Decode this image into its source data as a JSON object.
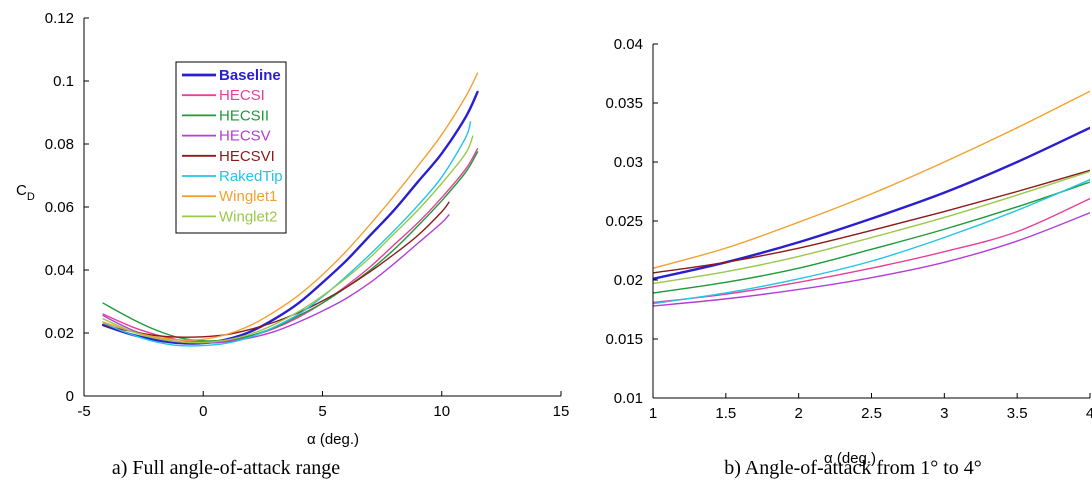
{
  "chart_data": [
    {
      "type": "line",
      "caption": "a) Full angle-of-attack range",
      "xlabel": "α (deg.)",
      "ylabel": "C",
      "ylabel_sub": "D",
      "xlim": [
        -5,
        15
      ],
      "ylim": [
        0,
        0.12
      ],
      "xticks": [
        -5,
        0,
        5,
        10,
        15
      ],
      "xtick_labels": [
        "-5",
        "0",
        "5",
        "10",
        "15"
      ],
      "yticks": [
        0,
        0.02,
        0.04,
        0.06,
        0.08,
        0.1,
        0.12
      ],
      "ytick_labels": [
        "0",
        "0.02",
        "0.04",
        "0.06",
        "0.08",
        "0.1",
        "0.12"
      ],
      "grid": false,
      "legend": "upper-left inside",
      "series": [
        {
          "name": "Baseline",
          "color": "#2a1fd0",
          "width": 2.4,
          "x": [
            -4.2,
            -3,
            -2,
            -1,
            0,
            1,
            2,
            3,
            4,
            5,
            6,
            7,
            8,
            9,
            10,
            11,
            11.5
          ],
          "y": [
            0.0225,
            0.0195,
            0.0178,
            0.0168,
            0.0168,
            0.018,
            0.0205,
            0.0245,
            0.0295,
            0.036,
            0.043,
            0.051,
            0.059,
            0.068,
            0.077,
            0.0885,
            0.0965
          ]
        },
        {
          "name": "HECSI",
          "color": "#e8409a",
          "width": 1.4,
          "x": [
            -4.2,
            -3,
            -2,
            -1,
            0,
            1,
            2,
            3,
            4,
            5,
            6,
            7,
            8,
            9,
            10,
            11,
            11.5
          ],
          "y": [
            0.026,
            0.022,
            0.0195,
            0.0178,
            0.0172,
            0.0175,
            0.019,
            0.0215,
            0.025,
            0.0295,
            0.035,
            0.041,
            0.048,
            0.055,
            0.063,
            0.072,
            0.0785
          ]
        },
        {
          "name": "HECSII",
          "color": "#1f9a3a",
          "width": 1.4,
          "x": [
            -4.2,
            -3,
            -2,
            -1,
            0,
            1,
            2,
            3,
            4,
            5,
            6,
            7,
            8,
            9,
            10,
            11,
            11.5
          ],
          "y": [
            0.0295,
            0.0245,
            0.021,
            0.0185,
            0.0175,
            0.0178,
            0.0192,
            0.0218,
            0.0255,
            0.0295,
            0.0345,
            0.04,
            0.0465,
            0.054,
            0.062,
            0.071,
            0.0775
          ]
        },
        {
          "name": "HECSV",
          "color": "#b23fd8",
          "width": 1.4,
          "x": [
            -4.2,
            -3,
            -2,
            -1,
            0,
            1,
            2,
            3,
            4,
            5,
            6,
            7,
            8,
            9,
            10,
            10.3
          ],
          "y": [
            0.0255,
            0.021,
            0.0185,
            0.0172,
            0.0168,
            0.0172,
            0.0185,
            0.0205,
            0.0235,
            0.027,
            0.031,
            0.036,
            0.042,
            0.0485,
            0.055,
            0.0575
          ]
        },
        {
          "name": "HECSVI",
          "color": "#8c1a1a",
          "width": 1.4,
          "x": [
            -4.2,
            -3,
            -2,
            -1,
            0,
            1,
            2,
            3,
            4,
            5,
            6,
            7,
            8,
            9,
            10,
            10.3
          ],
          "y": [
            0.0225,
            0.0205,
            0.0192,
            0.0187,
            0.0188,
            0.0195,
            0.0212,
            0.0235,
            0.0265,
            0.0302,
            0.0345,
            0.0395,
            0.045,
            0.051,
            0.0585,
            0.0615
          ]
        },
        {
          "name": "RakedTip",
          "color": "#22c4e8",
          "width": 1.4,
          "x": [
            -4.2,
            -3,
            -2,
            -1,
            0,
            1,
            2,
            3,
            4,
            5,
            6,
            7,
            8,
            9,
            10,
            11,
            11.2
          ],
          "y": [
            0.0232,
            0.0195,
            0.0172,
            0.016,
            0.016,
            0.0168,
            0.0188,
            0.022,
            0.026,
            0.0315,
            0.038,
            0.045,
            0.0525,
            0.0605,
            0.0695,
            0.082,
            0.087
          ]
        },
        {
          "name": "Winglet1",
          "color": "#f5a030",
          "width": 1.4,
          "x": [
            -4.2,
            -3,
            -2,
            -1,
            0,
            1,
            2,
            3,
            4,
            5,
            6,
            7,
            8,
            9,
            10,
            11,
            11.5
          ],
          "y": [
            0.0235,
            0.0205,
            0.0187,
            0.0178,
            0.018,
            0.0196,
            0.0225,
            0.0268,
            0.032,
            0.0385,
            0.046,
            0.0545,
            0.0635,
            0.073,
            0.083,
            0.095,
            0.1025
          ]
        },
        {
          "name": "Winglet2",
          "color": "#9ac84a",
          "width": 1.4,
          "x": [
            -4.2,
            -3,
            -2,
            -1,
            0,
            1,
            2,
            3,
            4,
            5,
            6,
            7,
            8,
            9,
            10,
            11,
            11.3
          ],
          "y": [
            0.0245,
            0.0205,
            0.0183,
            0.0172,
            0.017,
            0.0178,
            0.0197,
            0.0228,
            0.0268,
            0.0318,
            0.0375,
            0.044,
            0.0515,
            0.059,
            0.0675,
            0.077,
            0.0825
          ]
        }
      ]
    },
    {
      "type": "line",
      "caption": "b) Angle-of-attack from 1° to 4°",
      "xlabel": "α (deg.)",
      "xlim": [
        1,
        4
      ],
      "ylim": [
        0.01,
        0.04
      ],
      "xticks": [
        1,
        1.5,
        2,
        2.5,
        3,
        3.5,
        4
      ],
      "xtick_labels": [
        "1",
        "1.5",
        "2",
        "2.5",
        "3",
        "3.5",
        "4"
      ],
      "yticks": [
        0.01,
        0.015,
        0.02,
        0.025,
        0.03,
        0.035,
        0.04
      ],
      "ytick_labels": [
        "0.01",
        "0.015",
        "0.02",
        "0.025",
        "0.03",
        "0.035",
        "0.04"
      ],
      "grid": false,
      "series": [
        {
          "name": "Baseline",
          "color": "#2a1fd0",
          "width": 2.4,
          "x": [
            1,
            1.5,
            2,
            2.5,
            3,
            3.5,
            4
          ],
          "y": [
            0.0201,
            0.0215,
            0.0232,
            0.0252,
            0.0274,
            0.03,
            0.0329
          ]
        },
        {
          "name": "HECSI",
          "color": "#e8409a",
          "width": 1.4,
          "x": [
            1,
            1.5,
            2,
            2.5,
            3,
            3.5,
            4
          ],
          "y": [
            0.0181,
            0.0188,
            0.0198,
            0.021,
            0.0224,
            0.0241,
            0.0269
          ]
        },
        {
          "name": "HECSII",
          "color": "#1f9a3a",
          "width": 1.4,
          "x": [
            1,
            1.5,
            2,
            2.5,
            3,
            3.5,
            4
          ],
          "y": [
            0.0189,
            0.0198,
            0.021,
            0.0226,
            0.0243,
            0.0262,
            0.0283
          ]
        },
        {
          "name": "HECSV",
          "color": "#b23fd8",
          "width": 1.4,
          "x": [
            1,
            1.5,
            2,
            2.5,
            3,
            3.5,
            4
          ],
          "y": [
            0.0178,
            0.0184,
            0.0192,
            0.0202,
            0.0215,
            0.0233,
            0.0257
          ]
        },
        {
          "name": "HECSVI",
          "color": "#8c1a1a",
          "width": 1.4,
          "x": [
            1,
            1.5,
            2,
            2.5,
            3,
            3.5,
            4
          ],
          "y": [
            0.0206,
            0.0215,
            0.0227,
            0.0242,
            0.0258,
            0.0275,
            0.0293
          ]
        },
        {
          "name": "RakedTip",
          "color": "#22c4e8",
          "width": 1.4,
          "x": [
            1,
            1.5,
            2,
            2.5,
            3,
            3.5,
            4
          ],
          "y": [
            0.018,
            0.0189,
            0.0201,
            0.0216,
            0.0236,
            0.0259,
            0.0285
          ]
        },
        {
          "name": "Winglet1",
          "color": "#f5a030",
          "width": 1.4,
          "x": [
            1,
            1.5,
            2,
            2.5,
            3,
            3.5,
            4
          ],
          "y": [
            0.021,
            0.0227,
            0.0249,
            0.0273,
            0.03,
            0.0329,
            0.036
          ]
        },
        {
          "name": "Winglet2",
          "color": "#9ac84a",
          "width": 1.4,
          "x": [
            1,
            1.5,
            2,
            2.5,
            3,
            3.5,
            4
          ],
          "y": [
            0.0197,
            0.0207,
            0.022,
            0.0236,
            0.0253,
            0.0272,
            0.0292
          ]
        }
      ]
    }
  ]
}
